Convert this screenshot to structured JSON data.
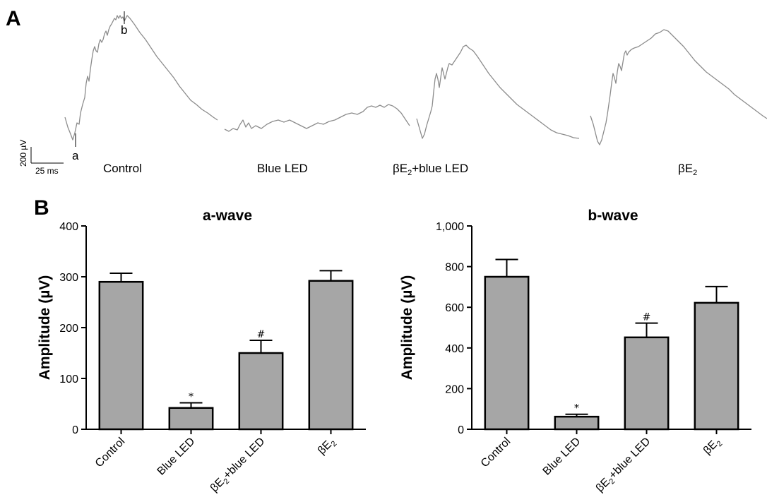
{
  "panel_a": {
    "letter": "A",
    "scale_bar": {
      "y_label": "200 µV",
      "x_label": "25 ms"
    },
    "markers": {
      "a": "a",
      "b": "b"
    },
    "trace_labels": [
      {
        "text": "Control"
      },
      {
        "text": "Blue LED"
      },
      {
        "base": "βE",
        "sub": "2",
        "rest": "+blue LED"
      },
      {
        "base": "βE",
        "sub": "2",
        "rest": ""
      }
    ]
  },
  "panel_b": {
    "letter": "B"
  },
  "chart_data": [
    {
      "type": "bar",
      "title": "a-wave",
      "ylabel": "Amplitude (µV)",
      "xlabel": "",
      "ylim": [
        0,
        400
      ],
      "yticks": [
        0,
        100,
        200,
        300,
        400
      ],
      "ytick_labels": [
        "0",
        "100",
        "200",
        "300",
        "400"
      ],
      "categories": [
        {
          "base": "Control",
          "sub": "",
          "rest": ""
        },
        {
          "base": "Blue LED",
          "sub": "",
          "rest": ""
        },
        {
          "base": "βE",
          "sub": "2",
          "rest": "+blue LED"
        },
        {
          "base": "βE",
          "sub": "2",
          "rest": ""
        }
      ],
      "values": [
        290,
        42,
        150,
        292
      ],
      "errors": [
        17,
        10,
        25,
        20
      ],
      "annotations": [
        "",
        "*",
        "#",
        ""
      ],
      "bar_color": "#a6a6a6"
    },
    {
      "type": "bar",
      "title": "b-wave",
      "ylabel": "Amplitude (µV)",
      "xlabel": "",
      "ylim": [
        0,
        1000
      ],
      "yticks": [
        0,
        200,
        400,
        600,
        800,
        1000
      ],
      "ytick_labels": [
        "0",
        "200",
        "400",
        "600",
        "800",
        "1,000"
      ],
      "categories": [
        {
          "base": "Control",
          "sub": "",
          "rest": ""
        },
        {
          "base": "Blue LED",
          "sub": "",
          "rest": ""
        },
        {
          "base": "βE",
          "sub": "2",
          "rest": "+blue LED"
        },
        {
          "base": "βE",
          "sub": "2",
          "rest": ""
        }
      ],
      "values": [
        750,
        62,
        452,
        622
      ],
      "errors": [
        85,
        12,
        70,
        80
      ],
      "annotations": [
        "",
        "*",
        "#",
        ""
      ],
      "bar_color": "#a6a6a6"
    }
  ]
}
